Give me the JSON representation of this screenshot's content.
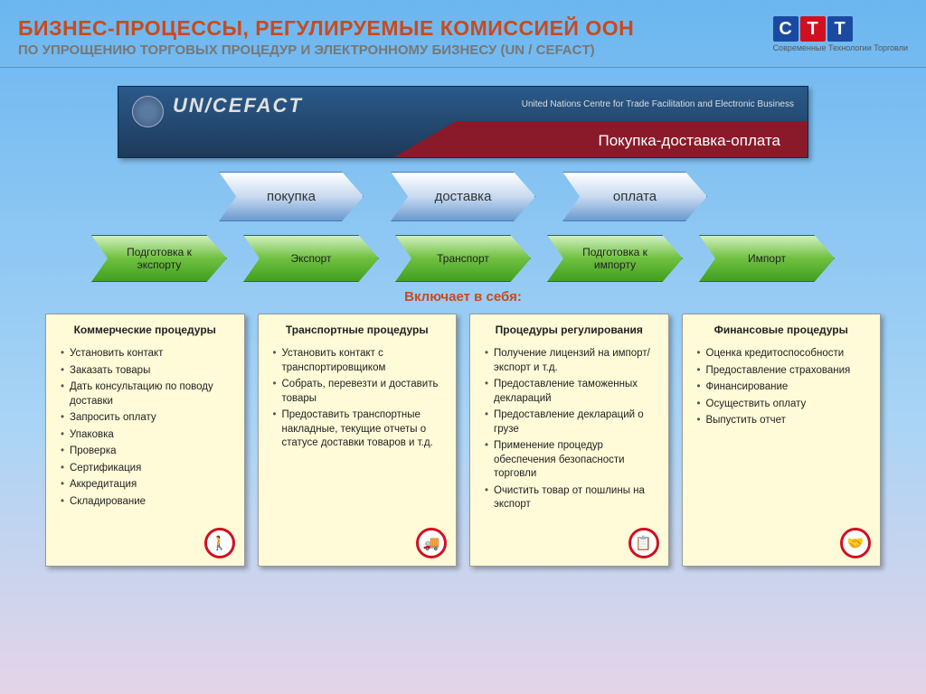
{
  "header": {
    "title": "БИЗНЕС-ПРОЦЕССЫ, РЕГУЛИРУЕМЫЕ КОМИССИЕЙ ООН",
    "subtitle": "ПО УПРОЩЕНИЮ ТОРГОВЫХ ПРОЦЕДУР И ЭЛЕКТРОННОМУ БИЗНЕСУ (UN / CEFACT)",
    "logo_letters": [
      "С",
      "Т",
      "Т"
    ],
    "logo_colors": [
      "#1a4aa0",
      "#d01020",
      "#1a4aa0"
    ],
    "logo_caption": "Современные Технологии Торговли"
  },
  "banner": {
    "un_text": "UN/CEFACT",
    "tagline": "United Nations Centre for Trade Facilitation and Electronic Business",
    "red_label": "Покупка-доставка-оплата",
    "bg_top": "#2a5a8a",
    "red_color": "#8a1a2a"
  },
  "blue_arrows": [
    "покупка",
    "доставка",
    "оплата"
  ],
  "blue_arrow_style": {
    "gradient_top": "#ffffff",
    "gradient_mid": "#c8daf0",
    "gradient_bot": "#6a9ad0",
    "border": "#4a7ab0"
  },
  "green_arrows": [
    "Подготовка к экспорту",
    "Экспорт",
    "Транспорт",
    "Подготовка к импорту",
    "Импорт"
  ],
  "green_arrow_style": {
    "gradient_top": "#d0f0c0",
    "gradient_mid": "#70c040",
    "gradient_bot": "#40a020",
    "border": "#2a7010"
  },
  "includes_label": "Включает в себя:",
  "cards": [
    {
      "title": "Коммерческие процедуры",
      "items": [
        "Установить контакт",
        "Заказать товары",
        "Дать консультацию по поводу доставки",
        "Запросить оплату",
        "Упаковка",
        "Проверка",
        "Сертификация",
        "Аккредитация",
        "Складирование"
      ],
      "icon": "🚶"
    },
    {
      "title": "Транспортные процедуры",
      "items": [
        "Установить контакт с транспортировщиком",
        "Собрать, перевезти и доставить товары",
        "Предоставить транспортные накладные, текущие отчеты о статусе доставки товаров и т.д."
      ],
      "icon": "🚚"
    },
    {
      "title": "Процедуры регулирования",
      "items": [
        "Получение лицензий на импорт/экспорт и т.д.",
        "Предоставление таможенных деклараций",
        "Предоставление деклараций о грузе",
        "Применение процедур обеспечения безопасности торговли",
        "Очистить товар от пошлины на экспорт"
      ],
      "icon": "📋"
    },
    {
      "title": "Финансовые процедуры",
      "items": [
        "Оценка кредитоспособности",
        "Предоставление страхования",
        "Финансирование",
        "Осуществить оплату",
        "Выпустить отчет"
      ],
      "icon": "🤝"
    }
  ],
  "card_style": {
    "bg": "#fffbd8",
    "border": "#999999",
    "icon_border": "#d01020"
  },
  "colors": {
    "title": "#c94a1c",
    "subtitle": "#777777",
    "bg_top": "#6bb6f0",
    "bg_bottom": "#e4d4e8"
  }
}
